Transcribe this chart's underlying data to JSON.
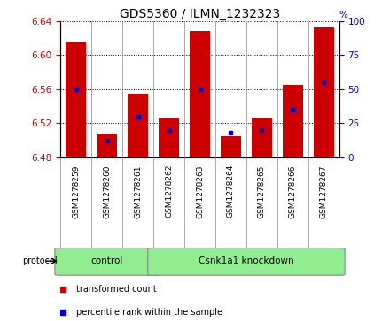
{
  "title": "GDS5360 / ILMN_1232323",
  "samples": [
    "GSM1278259",
    "GSM1278260",
    "GSM1278261",
    "GSM1278262",
    "GSM1278263",
    "GSM1278264",
    "GSM1278265",
    "GSM1278266",
    "GSM1278267"
  ],
  "transformed_counts": [
    6.615,
    6.508,
    6.555,
    6.525,
    6.628,
    6.505,
    6.525,
    6.565,
    6.632
  ],
  "percentile_ranks": [
    50,
    12,
    30,
    20,
    50,
    18,
    20,
    35,
    55
  ],
  "ylim_left": [
    6.48,
    6.64
  ],
  "ylim_right": [
    0,
    100
  ],
  "yticks_left": [
    6.48,
    6.52,
    6.56,
    6.6,
    6.64
  ],
  "yticks_right": [
    0,
    25,
    50,
    75,
    100
  ],
  "bar_color": "#cc0000",
  "dot_color": "#0000cc",
  "baseline": 6.48,
  "group_defs": [
    {
      "label": "control",
      "start": 0,
      "end": 2
    },
    {
      "label": "Csnk1a1 knockdown",
      "start": 3,
      "end": 8
    }
  ],
  "group_color": "#90ee90",
  "protocol_label": "protocol",
  "legend_items": [
    {
      "label": "transformed count",
      "color": "#cc0000"
    },
    {
      "label": "percentile rank within the sample",
      "color": "#0000cc"
    }
  ],
  "background_color": "#ffffff",
  "tick_label_color_left": "#cc0000",
  "tick_label_color_right": "#0000cc",
  "xtick_bg": "#d0d0d0"
}
